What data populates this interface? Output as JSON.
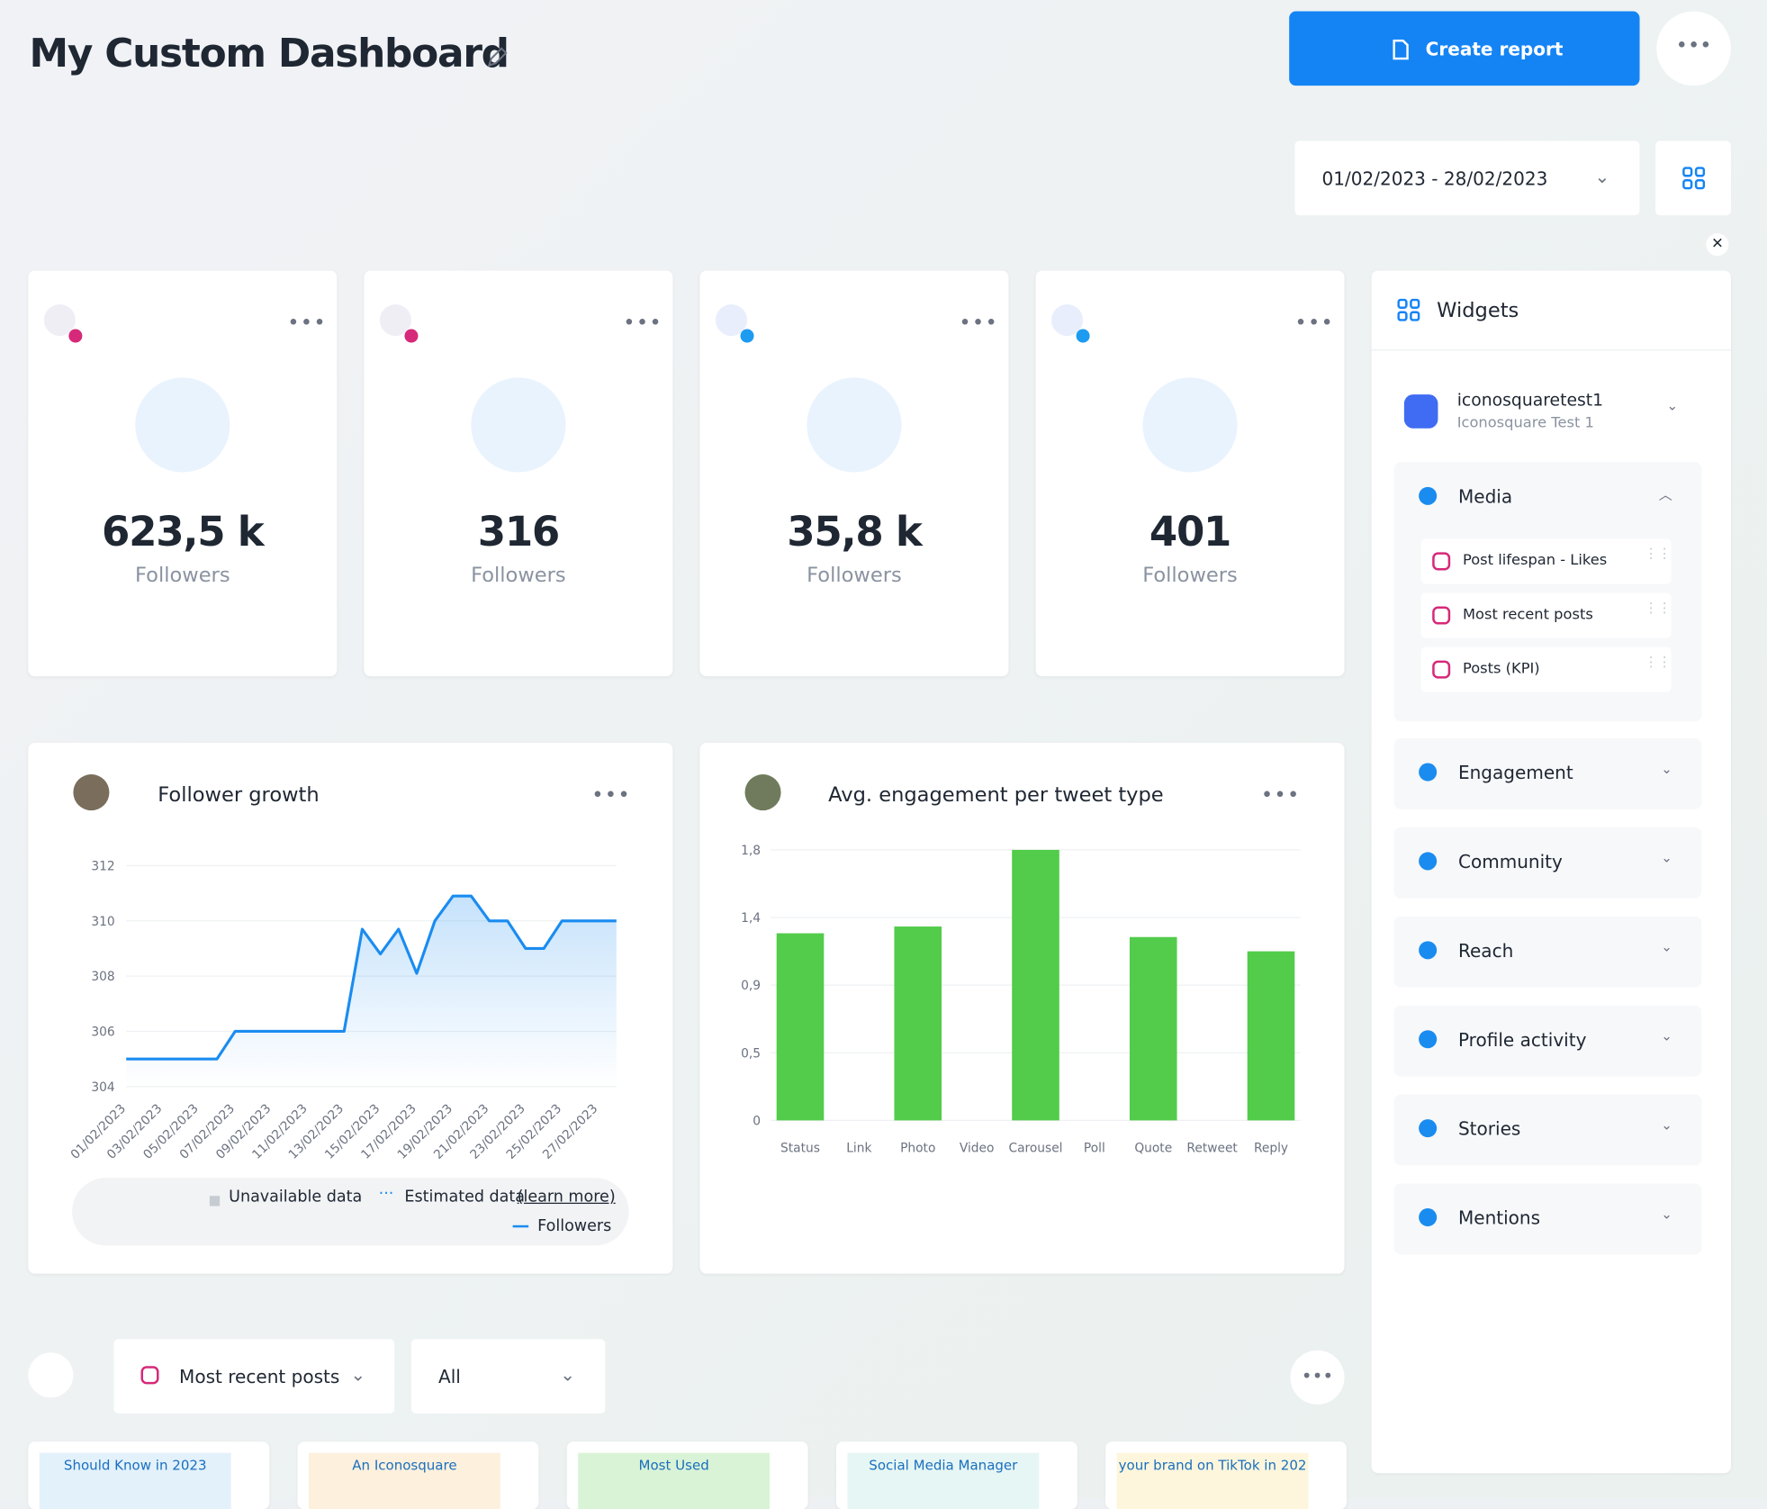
{
  "header": {
    "title": "My Custom Dashboard",
    "create_report": "Create report",
    "date_range": "01/02/2023 - 28/02/2023"
  },
  "stat_cards": [
    {
      "value": "623,5 k",
      "label": "Followers",
      "network": "instagram"
    },
    {
      "value": "316",
      "label": "Followers",
      "network": "instagram"
    },
    {
      "value": "35,8 k",
      "label": "Followers",
      "network": "twitter"
    },
    {
      "value": "401",
      "label": "Followers",
      "network": "twitter"
    }
  ],
  "chart_data": [
    {
      "type": "line",
      "title": "Follower growth",
      "categories": [
        "01/02/2023",
        null,
        "03/02/2023",
        null,
        "05/02/2023",
        null,
        "07/02/2023",
        null,
        "09/02/2023",
        null,
        "11/02/2023",
        null,
        "13/02/2023",
        null,
        "15/02/2023",
        null,
        "17/02/2023",
        null,
        "19/02/2023",
        null,
        "21/02/2023",
        null,
        "23/02/2023",
        null,
        "25/02/2023",
        null,
        "27/02/2023",
        null
      ],
      "series": [
        {
          "name": "Followers",
          "color": "#1a8cf0",
          "values": [
            305,
            305,
            305,
            305,
            305,
            305,
            306,
            306,
            306,
            306,
            306,
            306,
            306,
            309.7,
            308.8,
            309.7,
            308.1,
            310,
            310.9,
            310.9,
            310,
            310,
            309,
            309,
            310,
            310,
            310,
            310
          ]
        }
      ],
      "ylim": [
        304,
        312
      ],
      "yticks": [
        304,
        306,
        308,
        310,
        312
      ],
      "grid": true,
      "legend_extras": [
        "Unavailable data",
        "Estimated data",
        "(learn more)"
      ]
    },
    {
      "type": "bar",
      "title": "Avg. engagement per tweet type",
      "categories": [
        "Status",
        "Link",
        "Photo",
        "Video",
        "Carousel",
        "Poll",
        "Quote",
        "Retweet",
        "Reply"
      ],
      "values": [
        1.245,
        0,
        1.29,
        0,
        1.8,
        0,
        1.22,
        0,
        1.125
      ],
      "color": "#52cc4a",
      "ylim": [
        0,
        1.8
      ],
      "yticks": [
        0,
        {
          "value": 0.45,
          "label": "0,5"
        },
        {
          "value": 0.9,
          "label": "0,9"
        },
        {
          "value": 1.35,
          "label": "1,4"
        },
        {
          "value": 1.8,
          "label": "1,8"
        }
      ],
      "grid": true
    }
  ],
  "widgets": {
    "title": "Widgets",
    "account": {
      "name": "iconosquaretest1",
      "subtitle": "Iconosquare Test 1"
    },
    "sections": [
      {
        "name": "Media",
        "items": [
          "Post lifespan - Likes",
          "Most recent posts",
          "Posts (KPI)"
        ]
      },
      {
        "name": "Engagement"
      },
      {
        "name": "Community"
      },
      {
        "name": "Reach"
      },
      {
        "name": "Profile activity"
      },
      {
        "name": "Stories"
      },
      {
        "name": "Mentions"
      }
    ]
  },
  "bottom": {
    "posts_filter": "Most recent posts",
    "type_filter": "All",
    "post_snippets": [
      "Should Know in 2023",
      "An Iconosquare",
      "Most Used",
      "Social Media Manager",
      "your brand on TikTok in 202"
    ]
  }
}
